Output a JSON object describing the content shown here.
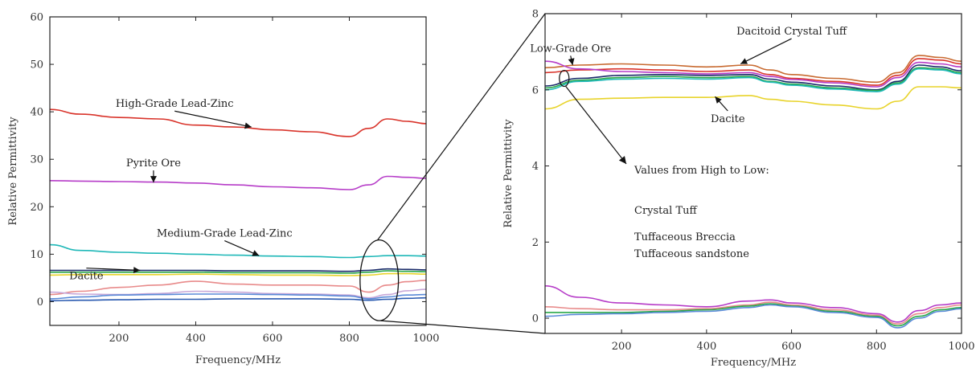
{
  "chart_data": [
    {
      "type": "line",
      "xlabel": "Frequency/MHz",
      "ylabel": "Relative Permittivity",
      "xlim": [
        20,
        1000
      ],
      "ylim": [
        -5,
        60
      ],
      "xticks": [
        200,
        400,
        600,
        800,
        1000
      ],
      "yticks": [
        0,
        10,
        20,
        30,
        40,
        50,
        60
      ],
      "x": [
        20,
        100,
        200,
        300,
        400,
        500,
        600,
        700,
        800,
        850,
        900,
        950,
        1000
      ],
      "series": [
        {
          "color": "#d9342b",
          "values": [
            40.5,
            39.5,
            38.8,
            38.5,
            37.2,
            36.8,
            36.2,
            35.8,
            34.8,
            36.5,
            38.5,
            38.0,
            37.5
          ]
        },
        {
          "color": "#b63cc8",
          "values": [
            25.5,
            25.4,
            25.3,
            25.2,
            25.0,
            24.6,
            24.2,
            24.0,
            23.6,
            24.6,
            26.4,
            26.2,
            26.0
          ]
        },
        {
          "color": "#1fb8b8",
          "values": [
            12.0,
            10.8,
            10.4,
            10.2,
            10.0,
            9.8,
            9.6,
            9.5,
            9.3,
            9.5,
            9.7,
            9.7,
            9.6
          ]
        },
        {
          "color": "#1a2a6a",
          "values": [
            6.6,
            6.6,
            6.6,
            6.6,
            6.6,
            6.5,
            6.5,
            6.5,
            6.4,
            6.6,
            6.9,
            6.8,
            6.7
          ]
        },
        {
          "color": "#2aa84a",
          "values": [
            6.2,
            6.2,
            6.2,
            6.2,
            6.2,
            6.1,
            6.1,
            6.1,
            6.0,
            6.2,
            6.5,
            6.4,
            6.3
          ]
        },
        {
          "color": "#e8d32a",
          "values": [
            5.6,
            5.7,
            5.7,
            5.7,
            5.8,
            5.7,
            5.6,
            5.6,
            5.5,
            5.6,
            5.9,
            5.9,
            5.8
          ]
        },
        {
          "color": "#e88a8a",
          "values": [
            1.5,
            2.2,
            3.0,
            3.5,
            4.3,
            3.7,
            3.5,
            3.5,
            3.3,
            2.0,
            3.5,
            4.2,
            4.5
          ]
        },
        {
          "color": "#c8a8d8",
          "values": [
            2.0,
            1.6,
            1.5,
            1.7,
            2.2,
            2.0,
            1.7,
            1.6,
            1.4,
            0.8,
            1.5,
            2.3,
            2.6
          ]
        },
        {
          "color": "#5a8ad8",
          "values": [
            0.6,
            1.0,
            1.4,
            1.5,
            1.6,
            1.6,
            1.5,
            1.4,
            1.2,
            0.6,
            1.0,
            1.4,
            1.5
          ]
        },
        {
          "color": "#2a5ab0",
          "values": [
            0.2,
            0.3,
            0.4,
            0.5,
            0.5,
            0.6,
            0.6,
            0.6,
            0.5,
            0.3,
            0.5,
            0.7,
            0.8
          ]
        }
      ],
      "annotations": [
        {
          "text": "High-Grade Lead-Zinc",
          "x": 345,
          "y": 41,
          "arrow_to": [
            545,
            36.8
          ]
        },
        {
          "text": "Pyrite Ore",
          "x": 290,
          "y": 28.5,
          "arrow_to": [
            290,
            25.1
          ]
        },
        {
          "text": "Medium-Grade Lead-Zinc",
          "x": 475,
          "y": 13.7,
          "arrow_to": [
            565,
            9.7
          ]
        },
        {
          "text": "Dacite",
          "x": 115,
          "y": 4.7,
          "arrow_to": [
            255,
            6.6
          ]
        }
      ],
      "zoom_ellipse": {
        "cx": 878,
        "cy": 4.5,
        "rx": 50,
        "ry": 8.5
      }
    },
    {
      "type": "line",
      "xlabel": "Frequency/MHz",
      "ylabel": "Relative Permittivity",
      "xlim": [
        20,
        1000
      ],
      "ylim": [
        -0.4,
        8
      ],
      "xticks": [
        200,
        400,
        600,
        800,
        1000
      ],
      "yticks": [
        0,
        2,
        4,
        6,
        8
      ],
      "x": [
        20,
        100,
        200,
        300,
        400,
        500,
        550,
        600,
        700,
        800,
        850,
        900,
        950,
        1000
      ],
      "series": [
        {
          "color": "#c86a30",
          "values": [
            6.58,
            6.65,
            6.68,
            6.65,
            6.6,
            6.65,
            6.52,
            6.4,
            6.3,
            6.2,
            6.45,
            6.9,
            6.85,
            6.75
          ]
        },
        {
          "color": "#d9342b",
          "values": [
            6.45,
            6.52,
            6.55,
            6.52,
            6.48,
            6.52,
            6.4,
            6.3,
            6.22,
            6.12,
            6.38,
            6.82,
            6.78,
            6.68
          ]
        },
        {
          "color": "#b63cc8",
          "values": [
            6.75,
            6.55,
            6.48,
            6.45,
            6.42,
            6.45,
            6.35,
            6.27,
            6.18,
            6.08,
            6.32,
            6.72,
            6.68,
            6.6
          ]
        },
        {
          "color": "#1a2a6a",
          "values": [
            6.1,
            6.3,
            6.38,
            6.4,
            6.38,
            6.4,
            6.28,
            6.2,
            6.1,
            6.0,
            6.22,
            6.65,
            6.6,
            6.5
          ]
        },
        {
          "color": "#2aa84a",
          "values": [
            6.05,
            6.25,
            6.32,
            6.35,
            6.32,
            6.35,
            6.22,
            6.15,
            6.05,
            5.98,
            6.18,
            6.58,
            6.55,
            6.45
          ]
        },
        {
          "color": "#1fb8b8",
          "values": [
            6.0,
            6.22,
            6.28,
            6.3,
            6.28,
            6.32,
            6.2,
            6.12,
            6.02,
            5.95,
            6.15,
            6.55,
            6.52,
            6.42
          ]
        },
        {
          "color": "#e8d32a",
          "values": [
            5.5,
            5.75,
            5.78,
            5.8,
            5.8,
            5.85,
            5.75,
            5.7,
            5.6,
            5.5,
            5.7,
            6.08,
            6.08,
            6.05
          ]
        },
        {
          "color": "#b63cc8",
          "values": [
            0.85,
            0.55,
            0.4,
            0.35,
            0.3,
            0.45,
            0.48,
            0.4,
            0.28,
            0.12,
            -0.1,
            0.2,
            0.35,
            0.4
          ]
        },
        {
          "color": "#e88a8a",
          "values": [
            0.3,
            0.25,
            0.22,
            0.22,
            0.25,
            0.35,
            0.42,
            0.35,
            0.22,
            0.08,
            -0.15,
            0.12,
            0.28,
            0.35
          ]
        },
        {
          "color": "#2aa84a",
          "values": [
            0.15,
            0.15,
            0.15,
            0.18,
            0.22,
            0.32,
            0.38,
            0.32,
            0.18,
            0.05,
            -0.2,
            0.05,
            0.22,
            0.28
          ]
        },
        {
          "color": "#5a8ad8",
          "values": [
            0.05,
            0.1,
            0.12,
            0.15,
            0.18,
            0.28,
            0.35,
            0.3,
            0.15,
            0.02,
            -0.25,
            0.0,
            0.18,
            0.25
          ]
        }
      ],
      "annotations": [
        {
          "text": "Low-Grade Ore",
          "x": 80,
          "y": 7.0,
          "arrow_to": [
            85,
            6.65
          ]
        },
        {
          "text": "Dacitoid Crystal Tuff",
          "x": 600,
          "y": 7.45,
          "arrow_to": [
            480,
            6.68
          ]
        },
        {
          "text": "Dacite",
          "x": 450,
          "y": 5.15,
          "arrow_to": [
            420,
            5.82
          ]
        },
        {
          "text": "Values from High to Low:",
          "x": 230,
          "y": 3.8
        },
        {
          "text": "Crystal Tuff",
          "x": 230,
          "y": 2.75
        },
        {
          "text": "Tuffaceous Breccia",
          "x": 230,
          "y": 2.05
        },
        {
          "text": "Tuffaceous sandstone",
          "x": 230,
          "y": 1.6
        }
      ],
      "small_ellipse": {
        "cx": 65,
        "cy": 6.3
      }
    }
  ]
}
